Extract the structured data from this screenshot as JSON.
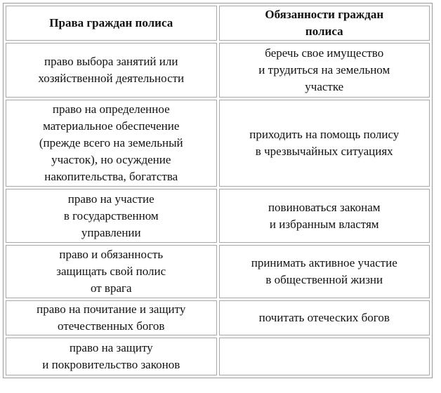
{
  "table": {
    "header": [
      [
        "Права граждан полиса"
      ],
      [
        "Обязанности граждан",
        "полиса"
      ]
    ],
    "rows": [
      [
        [
          "право выбора занятий или",
          "хозяйственной деятельности"
        ],
        [
          "беречь свое имущество",
          "и трудиться на земельном",
          "участке"
        ]
      ],
      [
        [
          "право на определенное",
          "материальное обеспечение",
          "(прежде всего на земельный",
          "участок), но осуждение",
          "накопительства, богатства"
        ],
        [
          "приходить на помощь полису",
          "в чрезвычайных ситуациях"
        ]
      ],
      [
        [
          "право на участие",
          "в государственном",
          "управлении"
        ],
        [
          "повиноваться законам",
          "и избранным властям"
        ]
      ],
      [
        [
          "право и обязанность",
          "защищать свой полис",
          "от врага"
        ],
        [
          "принимать активное участие",
          "в общественной жизни"
        ]
      ],
      [
        [
          "право на почитание и защиту",
          "отечественных богов"
        ],
        [
          "почитать отеческих богов"
        ]
      ],
      [
        [
          "право на защиту",
          "и покровительство законов"
        ]
      ]
    ]
  }
}
